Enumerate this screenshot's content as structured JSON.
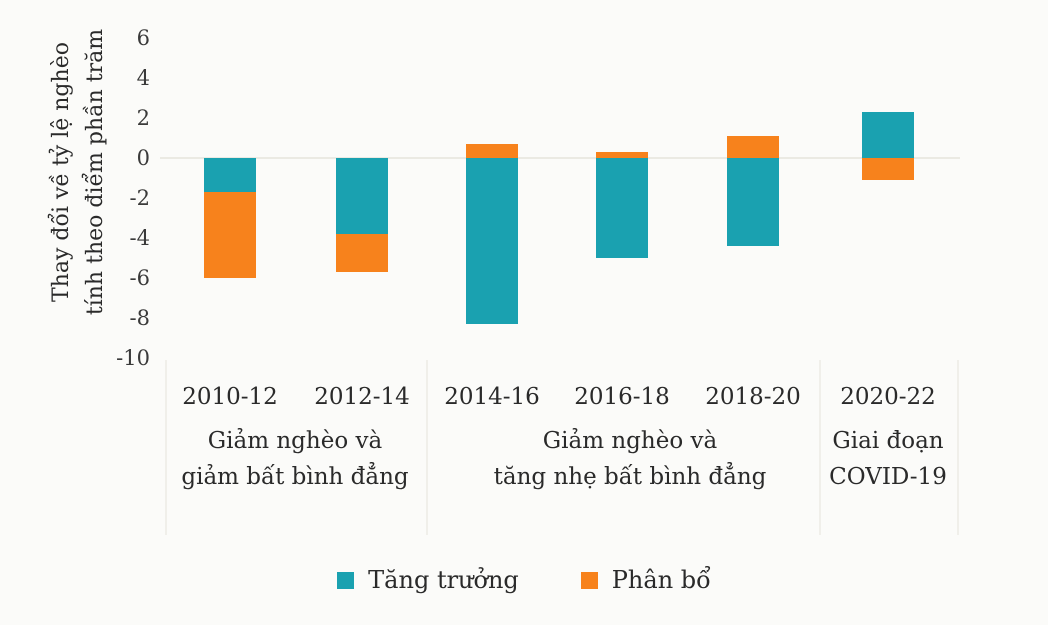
{
  "chart_data": {
    "type": "bar",
    "stacked": true,
    "categories": [
      "2010-12",
      "2012-14",
      "2014-16",
      "2016-18",
      "2018-20",
      "2020-22"
    ],
    "series": [
      {
        "name": "Tăng trưởng",
        "color": "#1aa1b0",
        "values": [
          -1.7,
          -3.8,
          -8.3,
          -5.0,
          -4.4,
          2.3
        ]
      },
      {
        "name": "Phân bổ",
        "color": "#f7821c",
        "values": [
          -4.3,
          -1.9,
          0.7,
          0.3,
          1.1,
          -1.1
        ]
      }
    ],
    "ylabel": [
      "Thay đổi về tỷ lệ nghèo",
      "tính theo điểm phần trăm"
    ],
    "ylim": [
      -10,
      6
    ],
    "yticks": [
      6,
      4,
      2,
      0,
      -2,
      -4,
      -6,
      -8,
      -10
    ],
    "groups": [
      {
        "categories": [
          "2010-12",
          "2012-14"
        ],
        "label": [
          "Giảm nghèo và",
          "giảm bất bình đẳng"
        ]
      },
      {
        "categories": [
          "2014-16",
          "2016-18",
          "2018-20"
        ],
        "label": [
          "Giảm nghèo và",
          "tăng nhẹ bất bình đẳng"
        ]
      },
      {
        "categories": [
          "2020-22"
        ],
        "label": [
          "Giai đoạn",
          "COVID-19"
        ]
      }
    ],
    "legend_position": "bottom",
    "grid": false
  }
}
